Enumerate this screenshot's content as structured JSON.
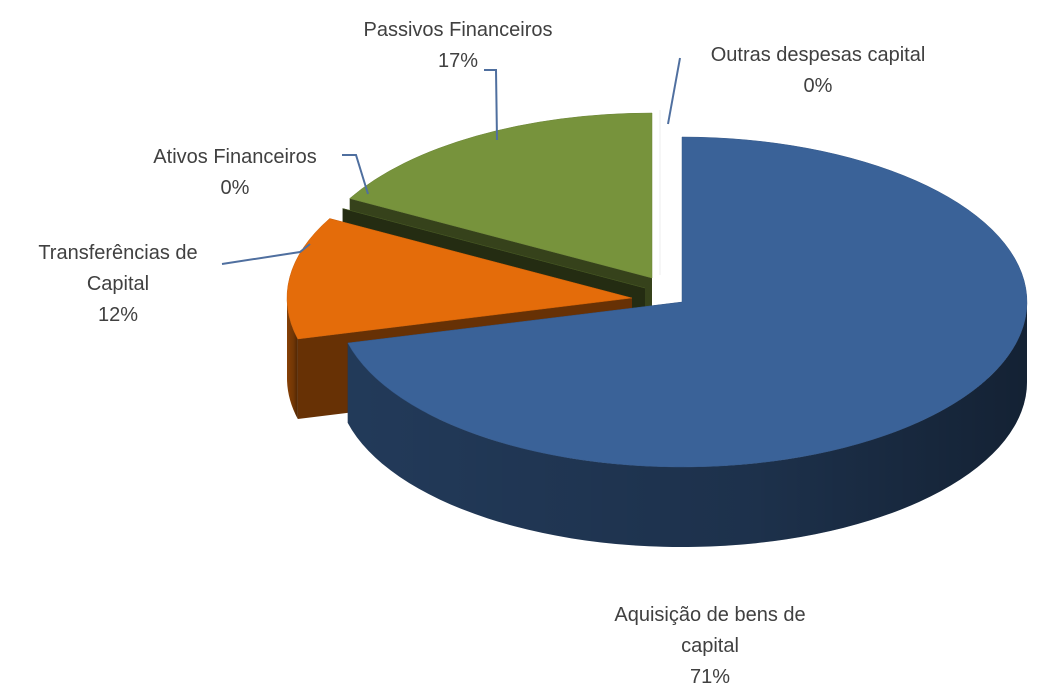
{
  "chart_data": {
    "type": "pie3d",
    "categories": [
      "Aquisição de bens de capital",
      "Transferências de Capital",
      "Ativos Financeiros",
      "Passivos Financeiros",
      "Outras despesas capital"
    ],
    "values": [
      71,
      12,
      0,
      17,
      0
    ],
    "value_labels": [
      "71%",
      "12%",
      "0%",
      "17%",
      "0%"
    ],
    "colors": [
      "#3a6298",
      "#e46c0a",
      "#4f6228",
      "#77933c",
      "#ffffff"
    ]
  }
}
